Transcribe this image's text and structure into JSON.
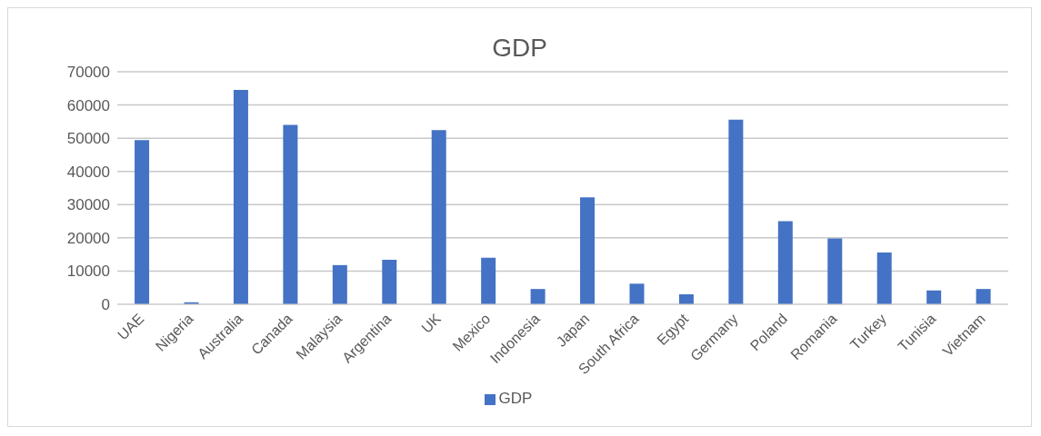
{
  "chart_data": {
    "type": "bar",
    "title": "GDP",
    "categories": [
      "UAE",
      "Nigeria",
      "Australia",
      "Canada",
      "Malaysia",
      "Argentina",
      "UK",
      "Mexico",
      "Indonesia",
      "Japan",
      "South Africa",
      "Egypt",
      "Germany",
      "Poland",
      "Romania",
      "Turkey",
      "Tunisia",
      "Vietnam"
    ],
    "series": [
      {
        "name": "GDP",
        "color": "#4472c4",
        "values": [
          49400,
          600,
          64500,
          54000,
          11800,
          13400,
          52400,
          14000,
          4600,
          32200,
          6200,
          3000,
          55600,
          25000,
          19800,
          15600,
          4200,
          4600
        ]
      }
    ],
    "ylim": [
      0,
      70000
    ],
    "yticks": [
      0,
      10000,
      20000,
      30000,
      40000,
      50000,
      60000,
      70000
    ],
    "grid": "y",
    "legend": "bottom"
  }
}
